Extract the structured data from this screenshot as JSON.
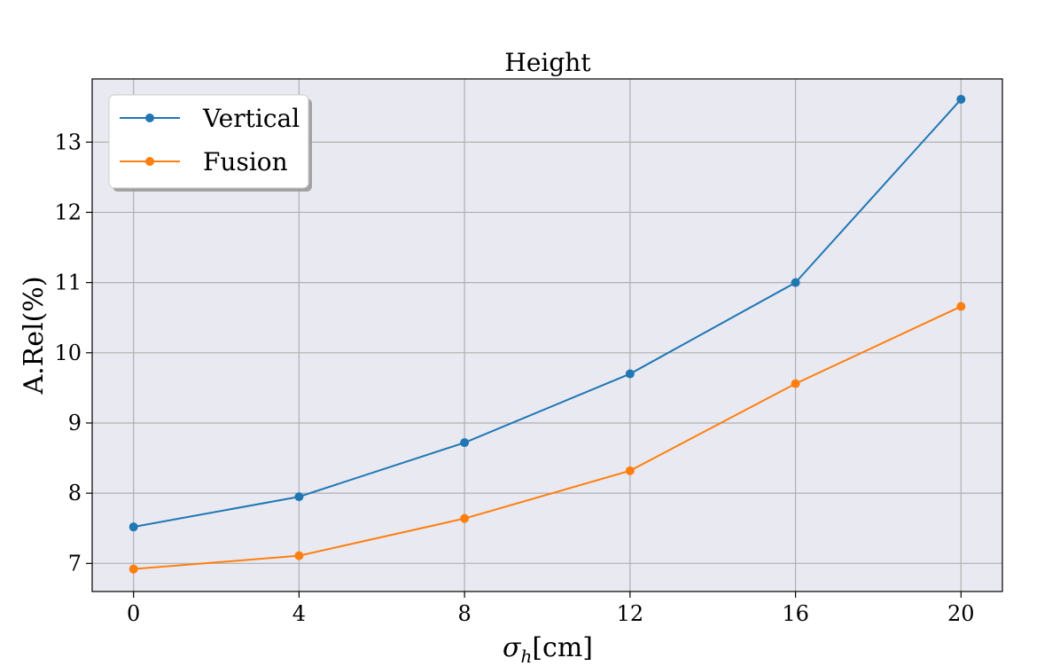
{
  "chart_data": {
    "type": "line",
    "title": "Height",
    "xlabel": "σ_h[cm]",
    "xlabel_parts": {
      "symbol": "σ",
      "subscript": "h",
      "unit": "[cm]"
    },
    "ylabel": "A.Rel(%)",
    "x": [
      0,
      4,
      8,
      12,
      16,
      20
    ],
    "xticks": [
      0,
      4,
      8,
      12,
      16,
      20
    ],
    "yticks": [
      7,
      8,
      9,
      10,
      11,
      12,
      13
    ],
    "xlim": [
      -1,
      21
    ],
    "ylim": [
      6.6,
      13.9
    ],
    "grid": true,
    "legend_position": "top-left",
    "background": "#e9e9f2",
    "series": [
      {
        "name": "Vertical",
        "color": "#1f77b4",
        "values": [
          7.52,
          7.95,
          8.72,
          9.7,
          11.0,
          13.61
        ]
      },
      {
        "name": "Fusion",
        "color": "#ff7f0e",
        "values": [
          6.92,
          7.11,
          7.64,
          8.32,
          9.56,
          10.66
        ]
      }
    ]
  }
}
